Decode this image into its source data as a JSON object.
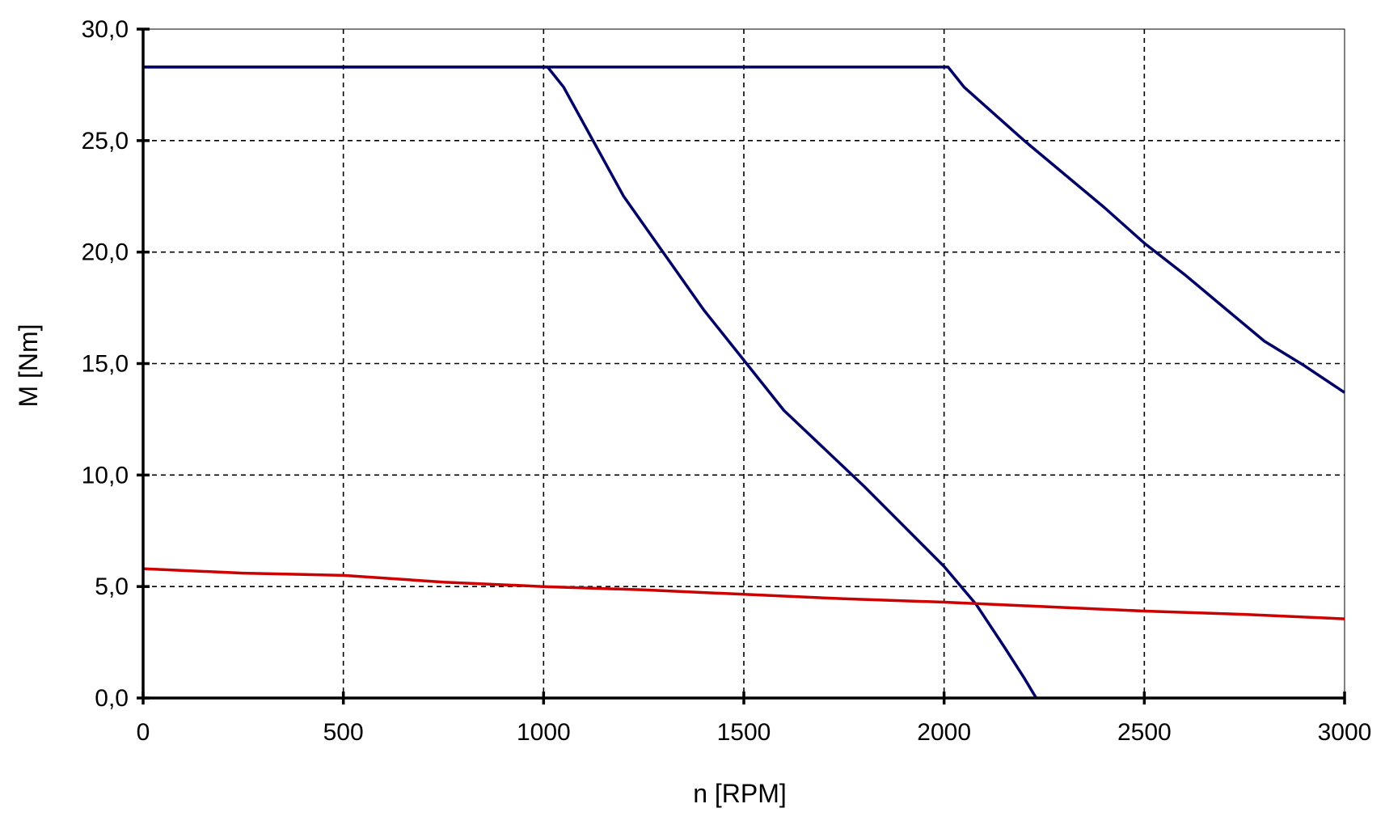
{
  "chart_data": {
    "type": "line",
    "title": "",
    "xlabel": "n [RPM]",
    "ylabel": "M [Nm]",
    "xlim": [
      0,
      3000
    ],
    "ylim": [
      0,
      30
    ],
    "x_ticks": [
      0,
      500,
      1000,
      1500,
      2000,
      2500,
      3000
    ],
    "x_tick_labels": [
      "0",
      "500",
      "1000",
      "1500",
      "2000",
      "2500",
      "3000"
    ],
    "y_ticks": [
      0,
      5,
      10,
      15,
      20,
      25,
      30
    ],
    "y_tick_labels": [
      "0,0",
      "5,0",
      "10,0",
      "15,0",
      "20,0",
      "25,0",
      "30,0"
    ],
    "grid": true,
    "grid_style": "dashed",
    "legend": "none",
    "series": [
      {
        "color": "#000066",
        "x": [
          0,
          1010,
          1050,
          1200,
          1400,
          1600,
          1800,
          2000,
          2080,
          2150,
          2200,
          2230
        ],
        "y": [
          28.3,
          28.3,
          27.4,
          22.5,
          17.4,
          12.9,
          9.5,
          5.9,
          4.2,
          2.3,
          0.9,
          0.0
        ]
      },
      {
        "color": "#000066",
        "x": [
          0,
          2010,
          2050,
          2200,
          2400,
          2500,
          2600,
          2700,
          2800,
          2900,
          3000
        ],
        "y": [
          28.3,
          28.3,
          27.4,
          25.0,
          22.0,
          20.4,
          19.0,
          17.5,
          16.0,
          14.9,
          13.7
        ]
      },
      {
        "color": "#cc0000",
        "x": [
          0,
          250,
          500,
          750,
          1000,
          1250,
          1500,
          1750,
          2000,
          2250,
          2500,
          2750,
          3000
        ],
        "y": [
          5.8,
          5.6,
          5.5,
          5.2,
          5.0,
          4.85,
          4.65,
          4.45,
          4.3,
          4.1,
          3.9,
          3.75,
          3.55
        ]
      }
    ]
  }
}
